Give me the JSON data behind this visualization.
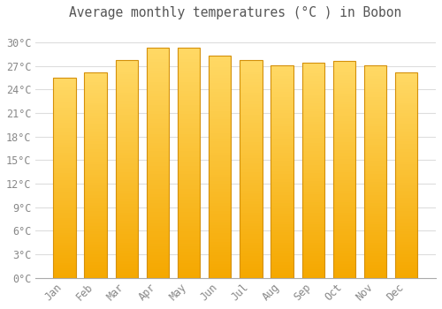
{
  "months": [
    "Jan",
    "Feb",
    "Mar",
    "Apr",
    "May",
    "Jun",
    "Jul",
    "Aug",
    "Sep",
    "Oct",
    "Nov",
    "Dec"
  ],
  "values": [
    25.5,
    26.2,
    27.7,
    29.3,
    29.3,
    28.3,
    27.7,
    27.1,
    27.4,
    27.6,
    27.1,
    26.2
  ],
  "title": "Average monthly temperatures (°C ) in Bobon",
  "ylim": [
    0,
    32
  ],
  "yticks": [
    0,
    3,
    6,
    9,
    12,
    15,
    18,
    21,
    24,
    27,
    30
  ],
  "bar_color_bottom": "#F5A800",
  "bar_color_top": "#FFD966",
  "bar_edge_color": "#D4900A",
  "bg_color": "#FFFFFF",
  "grid_color": "#DDDDDD",
  "title_fontsize": 10.5,
  "tick_fontsize": 8.5,
  "tick_color": "#888888",
  "title_color": "#555555",
  "bar_width": 0.72,
  "n_grad": 80
}
